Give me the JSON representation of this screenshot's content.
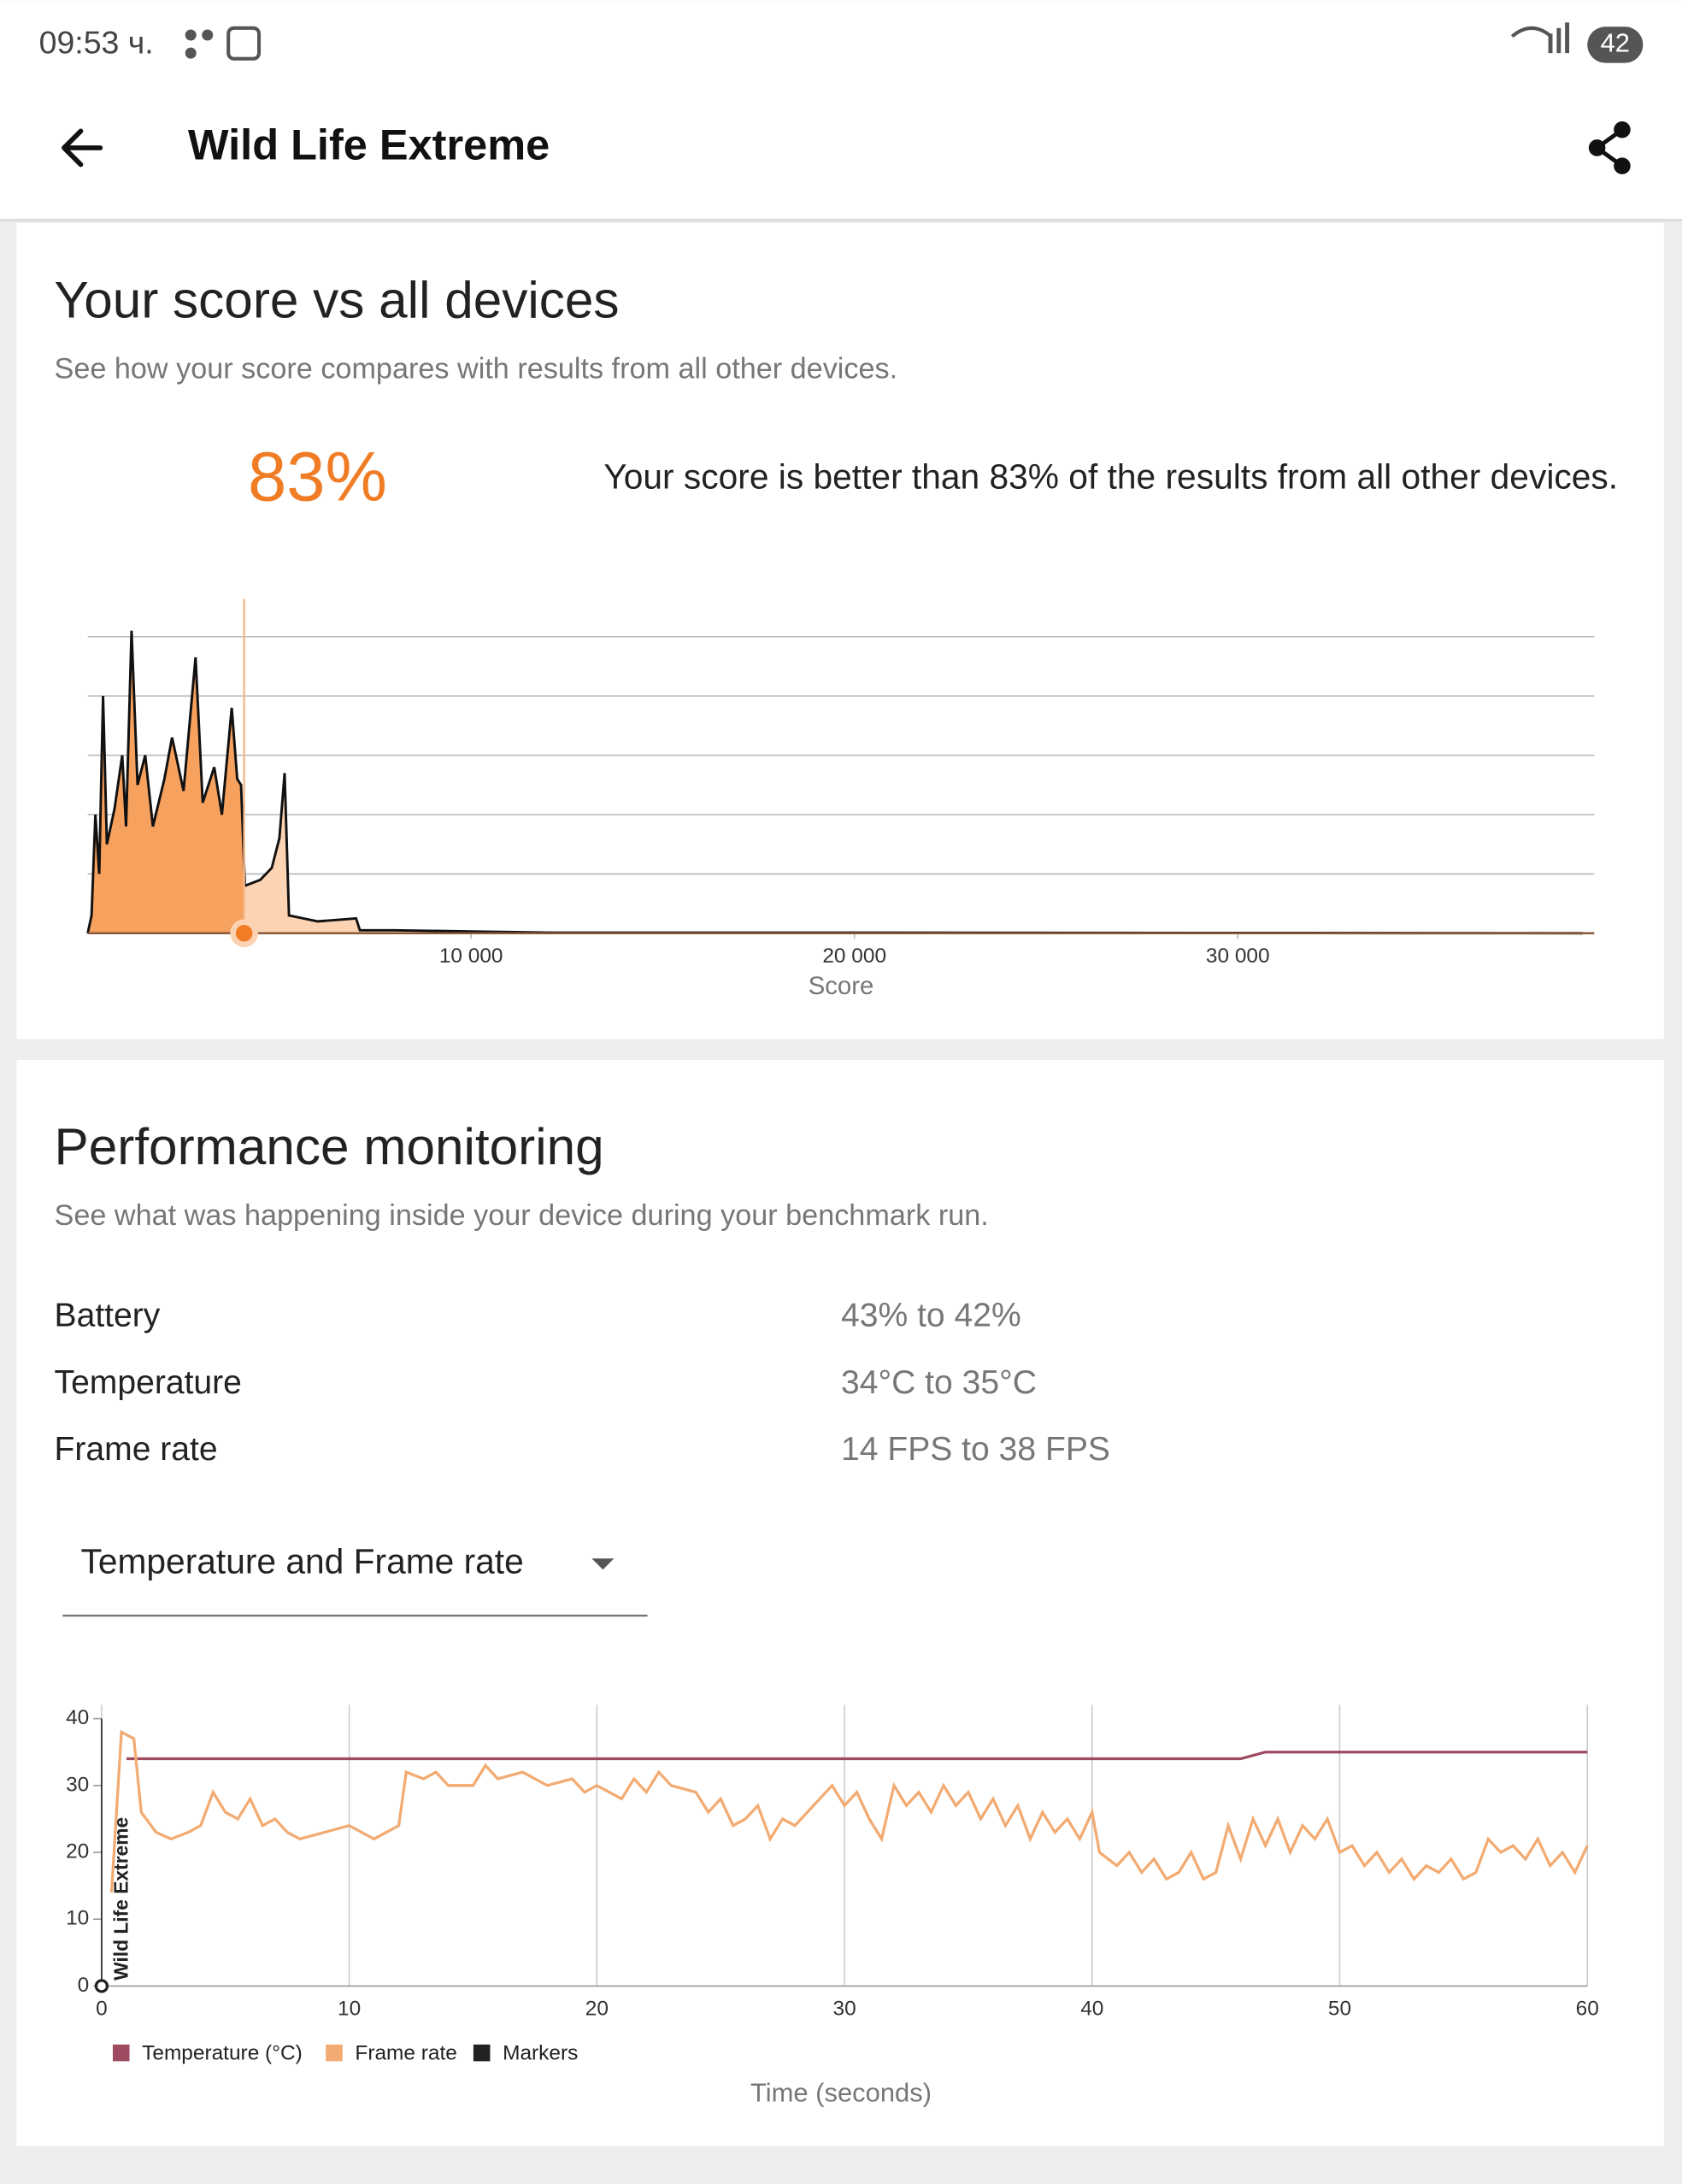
{
  "status_bar": {
    "time": "09:53 ч.",
    "battery": "42"
  },
  "app_bar": {
    "title": "Wild Life Extreme"
  },
  "score_card": {
    "title": "Your score vs all devices",
    "subtitle": "See how your score compares with results from all other devices.",
    "percentile": "83%",
    "description": "Your score is better than 83% of the results from all other devices.",
    "chart": {
      "type": "area",
      "x_label": "Score",
      "your_score": 4080,
      "color": "#f7a15e",
      "color_after": "#fcd3b3",
      "line_color": "#111111",
      "xlim": [
        0,
        39300
      ],
      "xticks": [
        {
          "value": 10000,
          "label": "10 000"
        },
        {
          "value": 20000,
          "label": "20 000"
        },
        {
          "value": 30000,
          "label": "30 000"
        }
      ],
      "ylim": [
        0,
        5
      ],
      "yticks": [
        0,
        1,
        2,
        3,
        4,
        5
      ],
      "grid": true,
      "x": [
        0,
        100,
        200,
        300,
        400,
        500,
        700,
        900,
        1000,
        1143,
        1300,
        1500,
        1700,
        2000,
        2200,
        2500,
        2813,
        3000,
        3300,
        3500,
        3757,
        3900,
        4000,
        4100,
        4500,
        4800,
        5000,
        5136,
        5250,
        6000,
        7000,
        7100,
        8000,
        10000,
        12000,
        20000,
        39000
      ],
      "values": [
        0,
        0.3,
        2.0,
        1.0,
        4.0,
        1.5,
        2.1,
        3.0,
        1.8,
        5.1,
        2.5,
        3.0,
        1.8,
        2.6,
        3.3,
        2.4,
        4.65,
        2.2,
        2.8,
        2.0,
        3.8,
        2.6,
        2.5,
        0.8,
        0.9,
        1.1,
        1.6,
        2.7,
        0.3,
        0.2,
        0.25,
        0.05,
        0.05,
        0.03,
        0.01,
        0.01,
        0
      ]
    }
  },
  "performance_card": {
    "title": "Performance monitoring",
    "subtitle": "See what was happening inside your device during your benchmark run.",
    "rows": [
      [
        "Battery",
        "43% to 42%"
      ],
      [
        "Temperature",
        "34°C to 35°C"
      ],
      [
        "Frame rate",
        "14 FPS to 38 FPS"
      ]
    ],
    "dropdown": "Temperature and Frame rate",
    "chart": {
      "type": "line",
      "x_label": "Time (seconds)",
      "xlim": [
        0,
        60
      ],
      "xticks": [
        0,
        10,
        20,
        30,
        40,
        50,
        60
      ],
      "ylim": [
        0,
        40
      ],
      "yticks": [
        0,
        10,
        20,
        30,
        40
      ],
      "grid": true,
      "series": [
        {
          "name": "Temperature (°C)",
          "color": "#9e4a60",
          "x": [
            1,
            46,
            47,
            60
          ],
          "values": [
            34,
            34,
            35,
            35
          ]
        },
        {
          "name": "Frame rate",
          "color": "#f2ab72",
          "x": [
            0.4,
            0.8,
            1.3,
            1.6,
            2.2,
            2.8,
            3.5,
            4,
            4.5,
            5,
            5.5,
            6,
            6.5,
            7,
            7.5,
            8,
            9,
            10,
            10.5,
            11,
            12,
            12.3,
            13,
            13.5,
            14,
            15,
            15.5,
            16,
            17,
            18,
            19,
            19.5,
            20,
            21,
            21.5,
            22,
            22.5,
            23,
            24,
            24.5,
            25,
            25.5,
            26,
            26.5,
            27,
            27.5,
            28,
            29,
            29.5,
            30,
            30.5,
            31,
            31.5,
            32,
            32.5,
            33,
            33.5,
            34,
            34.5,
            35,
            35.5,
            36,
            36.5,
            37,
            37.5,
            38,
            38.5,
            39,
            39.5,
            40,
            40.3,
            41,
            41.5,
            42,
            42.5,
            43,
            43.5,
            44,
            44.5,
            45,
            45.5,
            46,
            46.5,
            47,
            47.5,
            48,
            48.5,
            49,
            49.5,
            50,
            50.5,
            51,
            51.5,
            52,
            52.5,
            53,
            53.5,
            54,
            54.5,
            55,
            55.5,
            56,
            56.5,
            57,
            57.5,
            58,
            58.5,
            59,
            59.5,
            60
          ],
          "values": [
            14,
            38,
            37,
            26,
            23,
            22,
            23,
            24,
            29,
            26,
            25,
            28,
            24,
            25,
            23,
            22,
            23,
            24,
            23,
            22,
            24,
            32,
            31,
            32,
            30,
            30,
            33,
            31,
            32,
            30,
            31,
            29,
            30,
            28,
            31,
            29,
            32,
            30,
            29,
            26,
            28,
            24,
            25,
            27,
            22,
            25,
            24,
            28,
            30,
            27,
            29,
            25,
            22,
            30,
            27,
            29,
            26,
            30,
            27,
            29,
            25,
            28,
            24,
            27,
            22,
            26,
            23,
            25,
            22,
            26,
            20,
            18,
            20,
            17,
            19,
            16,
            17,
            20,
            16,
            17,
            24,
            19,
            25,
            21,
            25,
            20,
            24,
            22,
            25,
            20,
            21,
            18,
            20,
            17,
            19,
            16,
            18,
            17,
            19,
            16,
            17,
            22,
            20,
            21,
            19,
            22,
            18,
            20,
            17,
            21
          ]
        }
      ],
      "markers": {
        "name": "Markers",
        "color": "#222222",
        "items": [
          {
            "x": 0,
            "label": "Wild Life Extreme"
          }
        ]
      }
    }
  }
}
